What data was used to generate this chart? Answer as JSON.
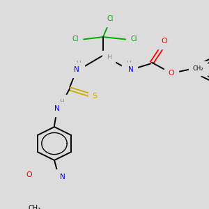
{
  "bg_color": "#dcdcdc",
  "bond_color": "#000000",
  "atom_colors": {
    "C": "#000000",
    "H": "#6a9a9a",
    "N": "#0000ff",
    "O": "#ff0000",
    "S": "#ccaa00",
    "Cl": "#00aa00"
  },
  "figsize": [
    3.0,
    3.0
  ],
  "dpi": 100
}
